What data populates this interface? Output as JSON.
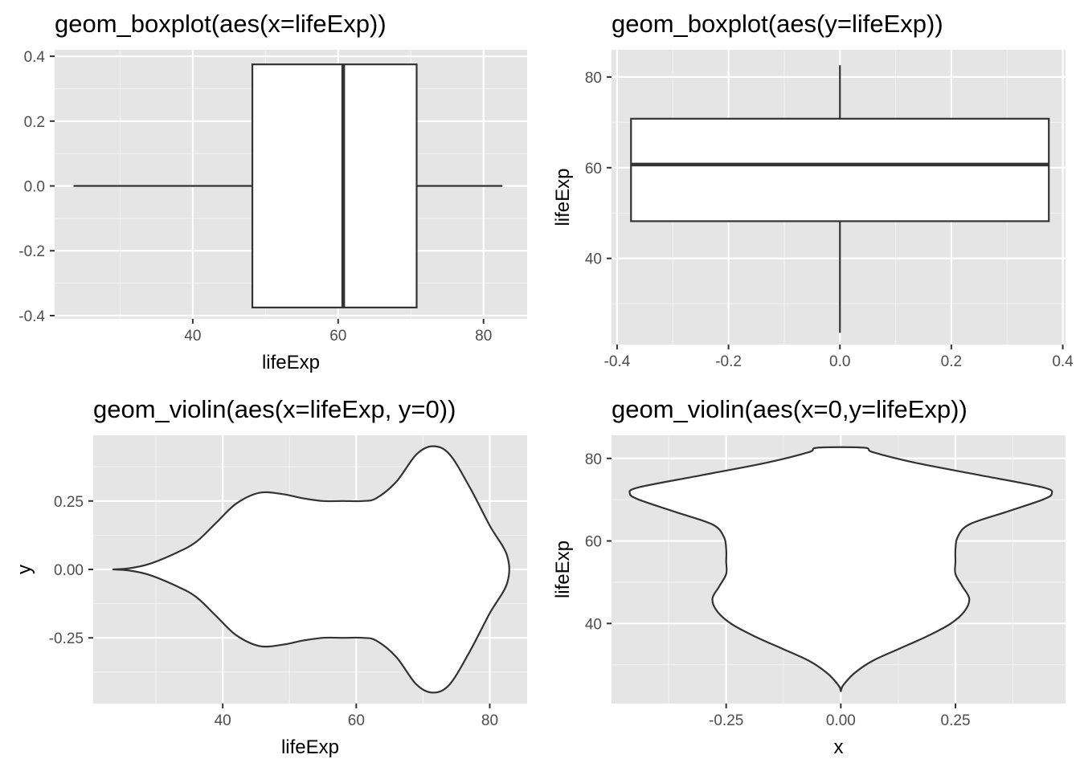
{
  "chart_data": [
    {
      "type": "boxplot",
      "title": "geom_boxplot(aes(x=lifeExp))",
      "orientation": "horizontal",
      "xlabel": "lifeExp",
      "ylabel": "",
      "xlim": [
        21,
        86
      ],
      "ylim": [
        -0.41,
        0.42
      ],
      "xticks": [
        40,
        60,
        80
      ],
      "xtick_labels": [
        "40",
        "60",
        "80"
      ],
      "yticks": [
        -0.4,
        -0.2,
        0.0,
        0.2,
        0.4
      ],
      "ytick_labels": [
        "-0.4",
        "-0.2",
        "0.0",
        "0.2",
        "0.4"
      ],
      "grid": true,
      "stats": {
        "min": 23.6,
        "q1": 48.2,
        "median": 60.7,
        "q3": 70.8,
        "max": 82.6,
        "box_half_width": 0.375
      }
    },
    {
      "type": "boxplot",
      "title": "geom_boxplot(aes(y=lifeExp))",
      "orientation": "vertical",
      "xlabel": "",
      "ylabel": "lifeExp",
      "xlim": [
        -0.41,
        0.405
      ],
      "ylim": [
        21,
        86
      ],
      "xticks": [
        -0.4,
        -0.2,
        0.0,
        0.2,
        0.4
      ],
      "xtick_labels": [
        "-0.4",
        "-0.2",
        "0.0",
        "0.2",
        "0.4"
      ],
      "yticks": [
        40,
        60,
        80
      ],
      "ytick_labels": [
        "40",
        "60",
        "80"
      ],
      "grid": true,
      "stats": {
        "min": 23.6,
        "q1": 48.2,
        "median": 60.7,
        "q3": 70.8,
        "max": 82.6,
        "box_half_width": 0.375
      }
    },
    {
      "type": "violin",
      "title": "geom_violin(aes(x=lifeExp, y=0))",
      "orientation": "horizontal",
      "xlabel": "lifeExp",
      "ylabel": "y",
      "xlim": [
        20.6,
        85.6
      ],
      "ylim": [
        -0.49,
        0.49
      ],
      "xticks": [
        40,
        60,
        80
      ],
      "xtick_labels": [
        "40",
        "60",
        "80"
      ],
      "yticks": [
        -0.25,
        0.0,
        0.25
      ],
      "ytick_labels": [
        "-0.25",
        "0.00",
        "0.25"
      ],
      "grid": true,
      "half_width": [
        [
          23.6,
          0.0
        ],
        [
          26,
          0.004
        ],
        [
          29,
          0.02
        ],
        [
          33,
          0.06
        ],
        [
          36,
          0.1
        ],
        [
          39,
          0.17
        ],
        [
          42,
          0.24
        ],
        [
          45.5,
          0.28
        ],
        [
          49,
          0.275
        ],
        [
          52,
          0.26
        ],
        [
          55,
          0.25
        ],
        [
          58,
          0.25
        ],
        [
          61,
          0.25
        ],
        [
          63,
          0.26
        ],
        [
          66,
          0.32
        ],
        [
          69,
          0.42
        ],
        [
          71.5,
          0.45
        ],
        [
          74,
          0.42
        ],
        [
          77,
          0.3
        ],
        [
          80,
          0.16
        ],
        [
          82.6,
          0.05
        ]
      ]
    },
    {
      "type": "violin",
      "title": "geom_violin(aes(x=0,y=lifeExp))",
      "orientation": "vertical",
      "xlabel": "x",
      "ylabel": "lifeExp",
      "xlim": [
        -0.5,
        0.49
      ],
      "ylim": [
        20.6,
        85.6
      ],
      "xticks": [
        -0.25,
        0.0,
        0.25
      ],
      "xtick_labels": [
        "-0.25",
        "0.00",
        "0.25"
      ],
      "yticks": [
        40,
        60,
        80
      ],
      "ytick_labels": [
        "40",
        "60",
        "80"
      ],
      "grid": true,
      "half_width": [
        [
          23.6,
          0.0
        ],
        [
          25,
          0.005
        ],
        [
          28,
          0.03
        ],
        [
          31,
          0.07
        ],
        [
          34,
          0.13
        ],
        [
          37,
          0.19
        ],
        [
          40,
          0.24
        ],
        [
          43,
          0.27
        ],
        [
          46,
          0.28
        ],
        [
          49,
          0.265
        ],
        [
          52,
          0.25
        ],
        [
          55,
          0.25
        ],
        [
          58,
          0.25
        ],
        [
          61,
          0.255
        ],
        [
          64,
          0.28
        ],
        [
          67,
          0.36
        ],
        [
          70,
          0.44
        ],
        [
          71.5,
          0.46
        ],
        [
          73,
          0.44
        ],
        [
          76,
          0.3
        ],
        [
          79,
          0.16
        ],
        [
          81.5,
          0.07
        ],
        [
          82.6,
          0.05
        ]
      ]
    }
  ]
}
